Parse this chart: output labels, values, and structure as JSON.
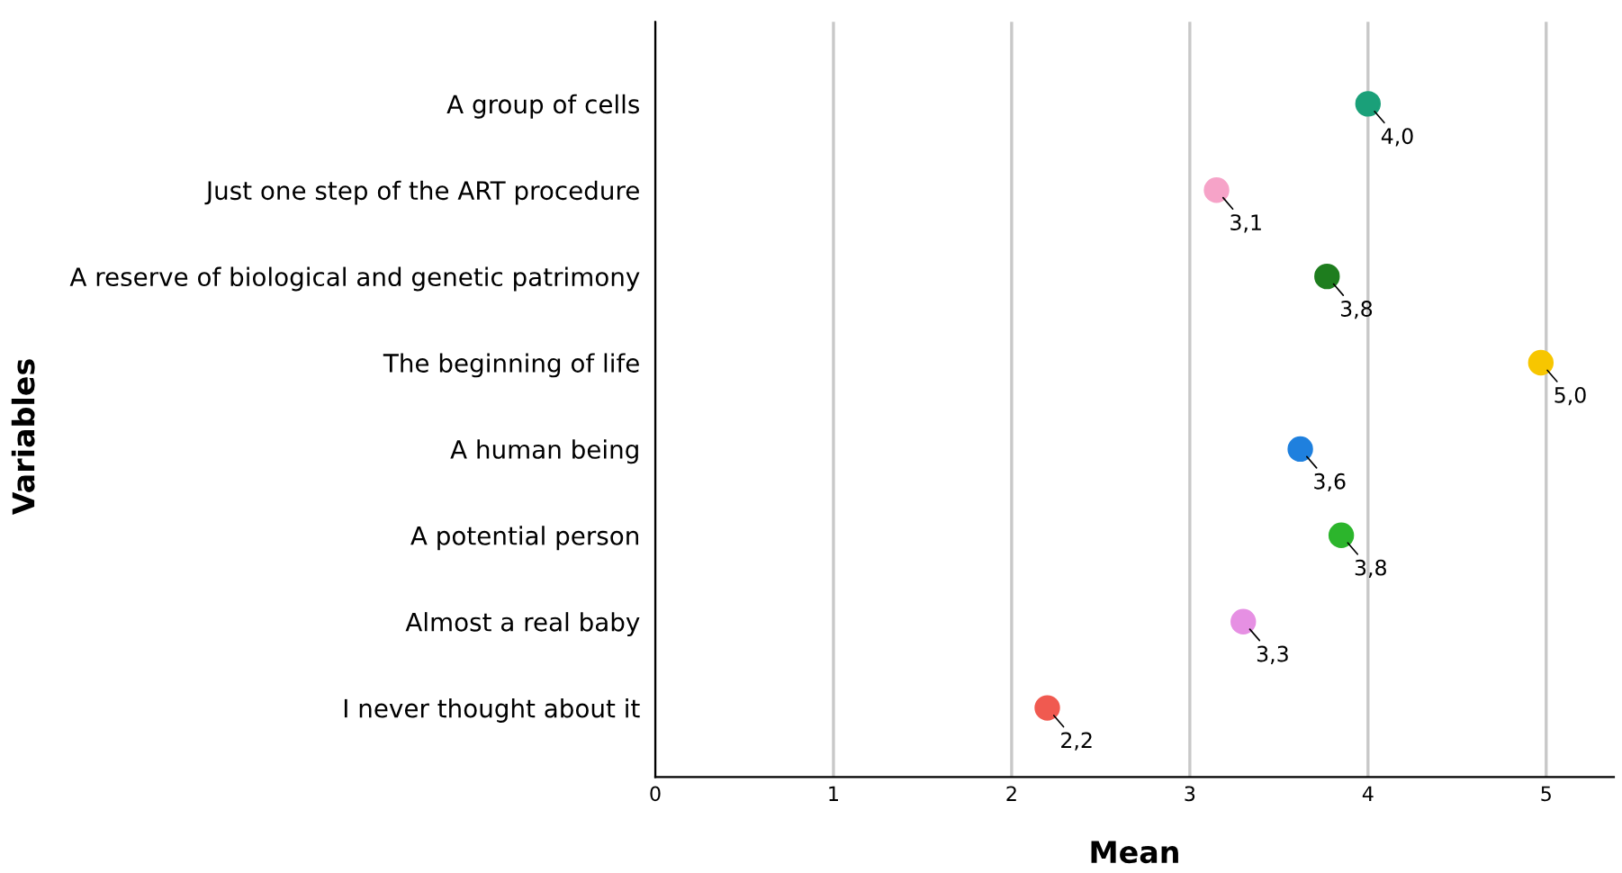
{
  "chart_data": {
    "type": "scatter",
    "orientation": "horizontal",
    "xlabel": "Mean",
    "ylabel": "Variables",
    "categories": [
      "A group of cells",
      "Just one step of the ART procedure",
      "A reserve of biological and genetic patrimony",
      "The beginning of life",
      "A human being",
      "A potential person",
      "Almost a real baby",
      "I never thought about it"
    ],
    "values": [
      4.0,
      3.15,
      3.77,
      4.97,
      3.62,
      3.85,
      3.3,
      2.2
    ],
    "value_labels": [
      "4,0",
      "3,1",
      "3,8",
      "5,0",
      "3,6",
      "3,8",
      "3,3",
      "2,2"
    ],
    "colors": [
      "#1aa079",
      "#f6a3c8",
      "#1e7d1e",
      "#f7c600",
      "#1f80de",
      "#2cb52c",
      "#e690e3",
      "#f05a50"
    ],
    "xlim": [
      0,
      5.38
    ],
    "xticks": [
      0,
      1,
      2,
      3,
      4,
      5
    ],
    "grid": "x",
    "marker": "circle",
    "legend": false
  }
}
